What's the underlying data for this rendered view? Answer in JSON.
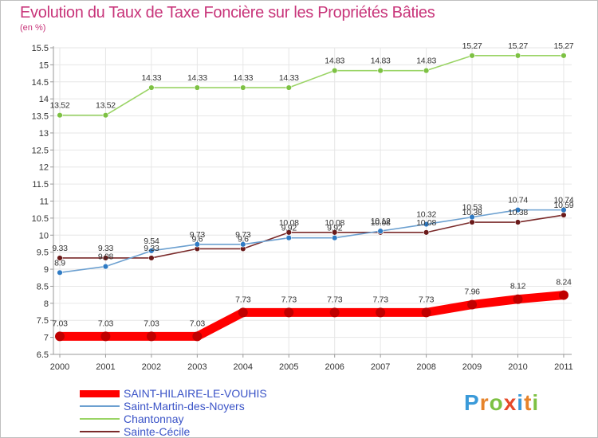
{
  "title": "Evolution du Taux de Taxe Foncière sur les Propriétés Bâties",
  "unit_label": "(en %)",
  "logo_text": "Proxiti",
  "colors": {
    "title": "#c8357a",
    "legend_text": "#3a53c7",
    "axis_text": "#333333",
    "grid": "#e6e6e6"
  },
  "chart_data": {
    "type": "line",
    "title": "Evolution du Taux de Taxe Foncière sur les Propriétés Bâties",
    "ylabel": "(en %)",
    "xlabel": "",
    "x": [
      "2000",
      "2001",
      "2002",
      "2003",
      "2004",
      "2005",
      "2006",
      "2007",
      "2008",
      "2009",
      "2010",
      "2011"
    ],
    "ylim": [
      6.5,
      15.5
    ],
    "yticks": [
      6.5,
      7,
      7.5,
      8,
      8.5,
      9,
      9.5,
      10,
      10.5,
      11,
      11.5,
      12,
      12.5,
      13,
      13.5,
      14,
      14.5,
      15,
      15.5
    ],
    "grid": true,
    "legend_position": "bottom",
    "series": [
      {
        "name": "SAINT-HILAIRE-LE-VOUHIS",
        "color": "#ff0000",
        "marker": "#c00000",
        "values": [
          7.03,
          7.03,
          7.03,
          7.03,
          7.73,
          7.73,
          7.73,
          7.73,
          7.73,
          7.96,
          8.12,
          8.24
        ],
        "labels": [
          "7.03",
          "7.03",
          "7.03",
          "7.03",
          "7.73",
          "7.73",
          "7.73",
          "7.73",
          "7.73",
          "7.96",
          "8.12",
          "8.24"
        ]
      },
      {
        "name": "Saint-Martin-des-Noyers",
        "color": "#6ca0d0",
        "marker": "#2f7bc4",
        "values": [
          8.9,
          9.08,
          9.54,
          9.73,
          9.73,
          9.92,
          9.92,
          10.12,
          10.32,
          10.53,
          10.74,
          10.74
        ],
        "labels": [
          "8.9",
          "9.08",
          "9.54",
          "9.73",
          "9.73",
          "9.92",
          "9.92",
          "10.12",
          "10.32",
          "10.53",
          "10.74",
          "10.74"
        ]
      },
      {
        "name": "Chantonnay",
        "color": "#9ad465",
        "marker": "#7dc143",
        "values": [
          13.52,
          13.52,
          14.33,
          14.33,
          14.33,
          14.33,
          14.83,
          14.83,
          14.83,
          15.27,
          15.27,
          15.27
        ],
        "labels": [
          "13.52",
          "13.52",
          "14.33",
          "14.33",
          "14.33",
          "14.33",
          "14.83",
          "14.83",
          "14.83",
          "15.27",
          "15.27",
          "15.27"
        ]
      },
      {
        "name": "Sainte-Cécile",
        "color": "#7a2a2a",
        "marker": "#6a1a1a",
        "values": [
          9.33,
          9.33,
          9.33,
          9.6,
          9.6,
          10.08,
          10.08,
          10.08,
          10.08,
          10.38,
          10.38,
          10.59
        ],
        "labels": [
          "9.33",
          "9.33",
          "9.33",
          "9.6",
          "9.6",
          "10.08",
          "10.08",
          "10.08",
          "10.08",
          "10.38",
          "10.38",
          "10.59"
        ]
      }
    ]
  }
}
